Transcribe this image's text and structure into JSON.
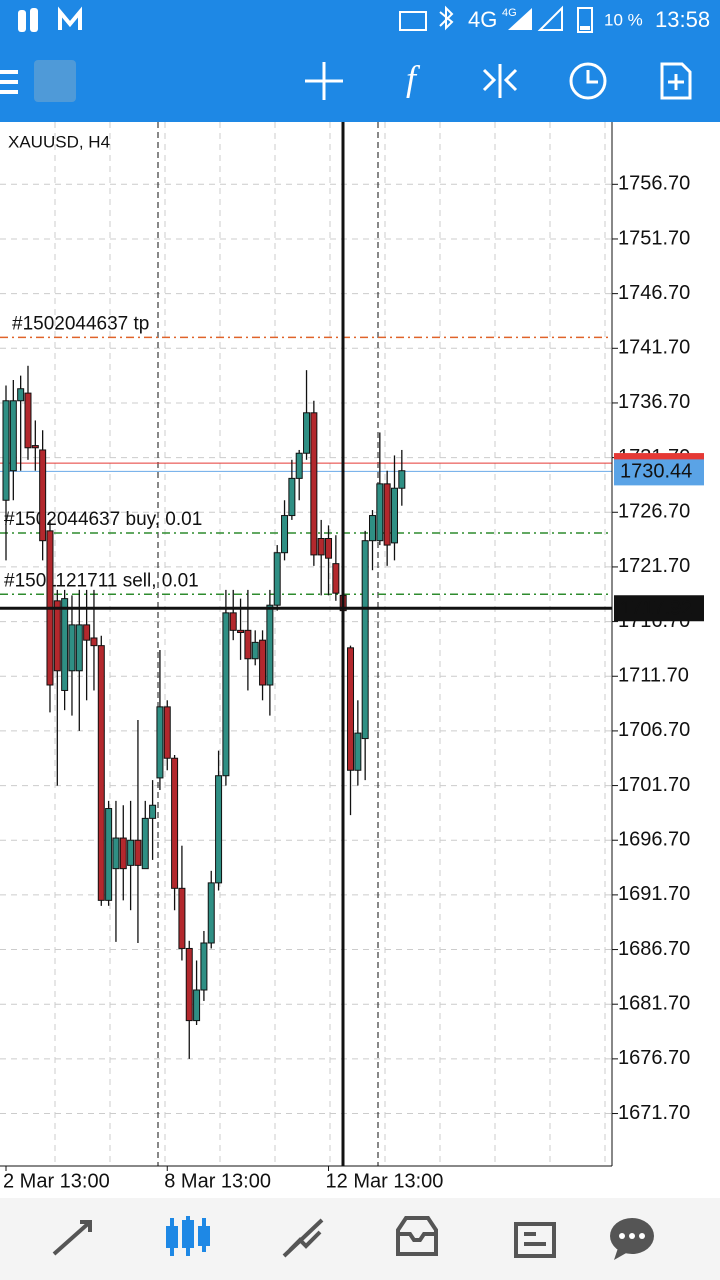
{
  "status_bar": {
    "network": "4G",
    "network_badge": "4G",
    "battery": "10 %",
    "time": "13:58"
  },
  "chart_data": {
    "type": "candlestick",
    "title": "XAUUSD, H4",
    "categories": [
      "2 Mar 13:00",
      null,
      null,
      null,
      null,
      null,
      null,
      null,
      null,
      null,
      null,
      null,
      null,
      null,
      null,
      null,
      null,
      null,
      null,
      null,
      null,
      null,
      "8 Mar 13:00",
      null,
      null,
      null,
      null,
      null,
      null,
      null,
      null,
      null,
      null,
      null,
      null,
      null,
      null,
      null,
      null,
      null,
      null,
      null,
      null,
      null,
      "12 Mar 13:00",
      null,
      null,
      null,
      null,
      null,
      null,
      null,
      null,
      null,
      null
    ],
    "open": [
      1727.8,
      1730.5,
      1736.9,
      1737.6,
      1732.8,
      1732.4,
      1725.0,
      1718.6,
      1710.4,
      1712.2,
      1712.2,
      1716.4,
      1715.2,
      1714.5,
      1691.2,
      1694.1,
      1696.9,
      1694.4,
      1696.7,
      1694.1,
      1698.7,
      1702.4,
      1708.9,
      1704.2,
      1692.3,
      1686.8,
      1680.2,
      1683.0,
      1687.3,
      1692.8,
      1702.6,
      1717.5,
      1715.9,
      1715.9,
      1713.3,
      1715.0,
      1710.9,
      1718.2,
      1723.0,
      1726.4,
      1729.8,
      1732.1,
      1735.8,
      1724.3,
      1724.3,
      1722.0,
      1719.1,
      1714.3,
      1703.1,
      1706.0,
      1724.1,
      1724.1,
      1729.3,
      1723.9,
      1728.9
    ],
    "high": [
      1738.3,
      1738.8,
      1739.2,
      1740.1,
      1735.1,
      1734.2,
      1726.0,
      1719.6,
      1719.6,
      1719.1,
      1719.6,
      1719.6,
      1719.6,
      1715.4,
      1700.3,
      1700.3,
      1699.9,
      1700.3,
      1707.7,
      1700.3,
      1702.2,
      1714.1,
      1709.5,
      1704.5,
      1696.2,
      1687.5,
      1685.7,
      1688.4,
      1693.9,
      1704.9,
      1719.6,
      1719.6,
      1718.8,
      1719.6,
      1715.9,
      1715.9,
      1719.6,
      1723.7,
      1727.8,
      1731.5,
      1732.4,
      1739.7,
      1736.9,
      1726.0,
      1725.5,
      1724.6,
      1719.6,
      1714.5,
      1709.5,
      1725.0,
      1726.9,
      1734.0,
      1730.5,
      1731.9,
      1732.4
    ],
    "low": [
      1722.3,
      1727.8,
      1730.5,
      1731.5,
      1730.5,
      1722.3,
      1708.4,
      1701.7,
      1708.6,
      1708.1,
      1706.7,
      1709.5,
      1710.4,
      1690.7,
      1690.7,
      1687.4,
      1691.2,
      1690.3,
      1687.3,
      1694.1,
      1694.9,
      1701.3,
      1703.1,
      1690.3,
      1685.7,
      1676.7,
      1679.8,
      1682.0,
      1686.8,
      1692.1,
      1701.7,
      1715.0,
      1713.2,
      1710.4,
      1712.7,
      1709.5,
      1708.1,
      1717.7,
      1722.3,
      1726.0,
      1727.8,
      1731.5,
      1721.8,
      1719.1,
      1719.1,
      1718.6,
      1711.3,
      1699.0,
      1701.7,
      1702.2,
      1721.4,
      1723.7,
      1721.8,
      1722.3,
      1727.3
    ],
    "close": [
      1736.9,
      1736.9,
      1738.0,
      1732.6,
      1732.6,
      1724.1,
      1710.9,
      1712.2,
      1718.8,
      1716.4,
      1716.4,
      1715.0,
      1714.5,
      1691.2,
      1699.6,
      1696.9,
      1694.1,
      1696.7,
      1694.4,
      1698.7,
      1699.9,
      1708.9,
      1704.2,
      1692.3,
      1686.8,
      1680.2,
      1683.0,
      1687.3,
      1692.8,
      1702.6,
      1717.5,
      1715.9,
      1715.7,
      1713.3,
      1714.8,
      1710.9,
      1718.2,
      1723.0,
      1726.4,
      1729.8,
      1732.1,
      1735.8,
      1722.8,
      1722.8,
      1722.5,
      1719.3,
      1717.7,
      1703.1,
      1706.5,
      1724.1,
      1726.4,
      1729.3,
      1723.7,
      1728.9,
      1730.5
    ],
    "up_color": "#2f8f84",
    "down_color": "#b3282d",
    "ylim": [
      1666.9,
      1762.4
    ],
    "yticks": [
      {
        "value": 1671.7,
        "label": "1671.70"
      },
      {
        "value": 1676.7,
        "label": "1676.70"
      },
      {
        "value": 1681.7,
        "label": "1681.70"
      },
      {
        "value": 1686.7,
        "label": "1686.70"
      },
      {
        "value": 1691.7,
        "label": "1691.70"
      },
      {
        "value": 1696.7,
        "label": "1696.70"
      },
      {
        "value": 1701.7,
        "label": "1701.70"
      },
      {
        "value": 1706.7,
        "label": "1706.70"
      },
      {
        "value": 1711.7,
        "label": "1711.70"
      },
      {
        "value": 1716.7,
        "label": "1716.70"
      },
      {
        "value": 1721.7,
        "label": "1721.70"
      },
      {
        "value": 1726.7,
        "label": "1726.70"
      },
      {
        "value": 1731.7,
        "label": "1731.70"
      },
      {
        "value": 1736.7,
        "label": "1736.70"
      },
      {
        "value": 1741.7,
        "label": "1741.70"
      },
      {
        "value": 1746.7,
        "label": "1746.70"
      },
      {
        "value": 1751.7,
        "label": "1751.70"
      },
      {
        "value": 1756.7,
        "label": "1756.70"
      }
    ],
    "grid": true,
    "orders": [
      {
        "label": "#1502044637 tp",
        "price": 1742.7,
        "color": "#e0632a"
      },
      {
        "label": "#1502044637 buy, 0.01",
        "price": 1724.8,
        "color": "#2e8b2e"
      },
      {
        "label": "#1501121711 sell, 0.01",
        "price": 1719.2,
        "color": "#2e8b2e"
      }
    ],
    "ask_price": 1731.2,
    "bid_price": 1730.44,
    "crosshair_price": 1717.92
  }
}
